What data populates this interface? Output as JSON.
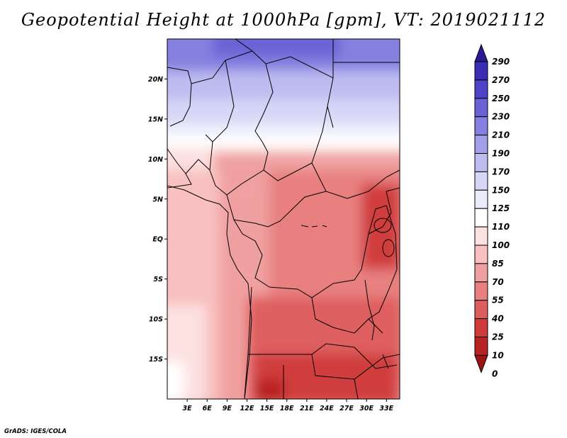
{
  "title": "Geopotential Height at 1000hPa [gpm], VT: 2019021112",
  "credit": "GrADS: IGES/COLA",
  "map": {
    "lon_range": [
      0,
      35
    ],
    "lat_range": [
      -20,
      25
    ],
    "x_ticks": [
      "3E",
      "6E",
      "9E",
      "12E",
      "15E",
      "18E",
      "21E",
      "24E",
      "27E",
      "30E",
      "33E"
    ],
    "y_ticks": [
      "20N",
      "15N",
      "10N",
      "5N",
      "EQ",
      "5S",
      "10S",
      "15S"
    ],
    "field_pattern": "north: purple/lavender (150-230 gpm) over the Sahara; white band (110-125) near 12-15N; pink/red (25-100) over central & southern Africa; darkest red (10-25) near 15-20S and East African highlands",
    "border_color": "#000000"
  },
  "colorbar": {
    "levels": [
      "290",
      "270",
      "250",
      "230",
      "210",
      "190",
      "170",
      "150",
      "125",
      "110",
      "100",
      "85",
      "70",
      "55",
      "40",
      "25",
      "10",
      "0"
    ],
    "colors": [
      "#2a1a96",
      "#3a2db4",
      "#4c43c8",
      "#6a63d6",
      "#8581e0",
      "#a19fe8",
      "#bdbcf0",
      "#d6d6f7",
      "#ebebfb",
      "#ffffff",
      "#fde0e0",
      "#f8c0c0",
      "#f0a0a0",
      "#e88080",
      "#de5e5e",
      "#d03c3c",
      "#b82424",
      "#9c1414"
    ]
  }
}
